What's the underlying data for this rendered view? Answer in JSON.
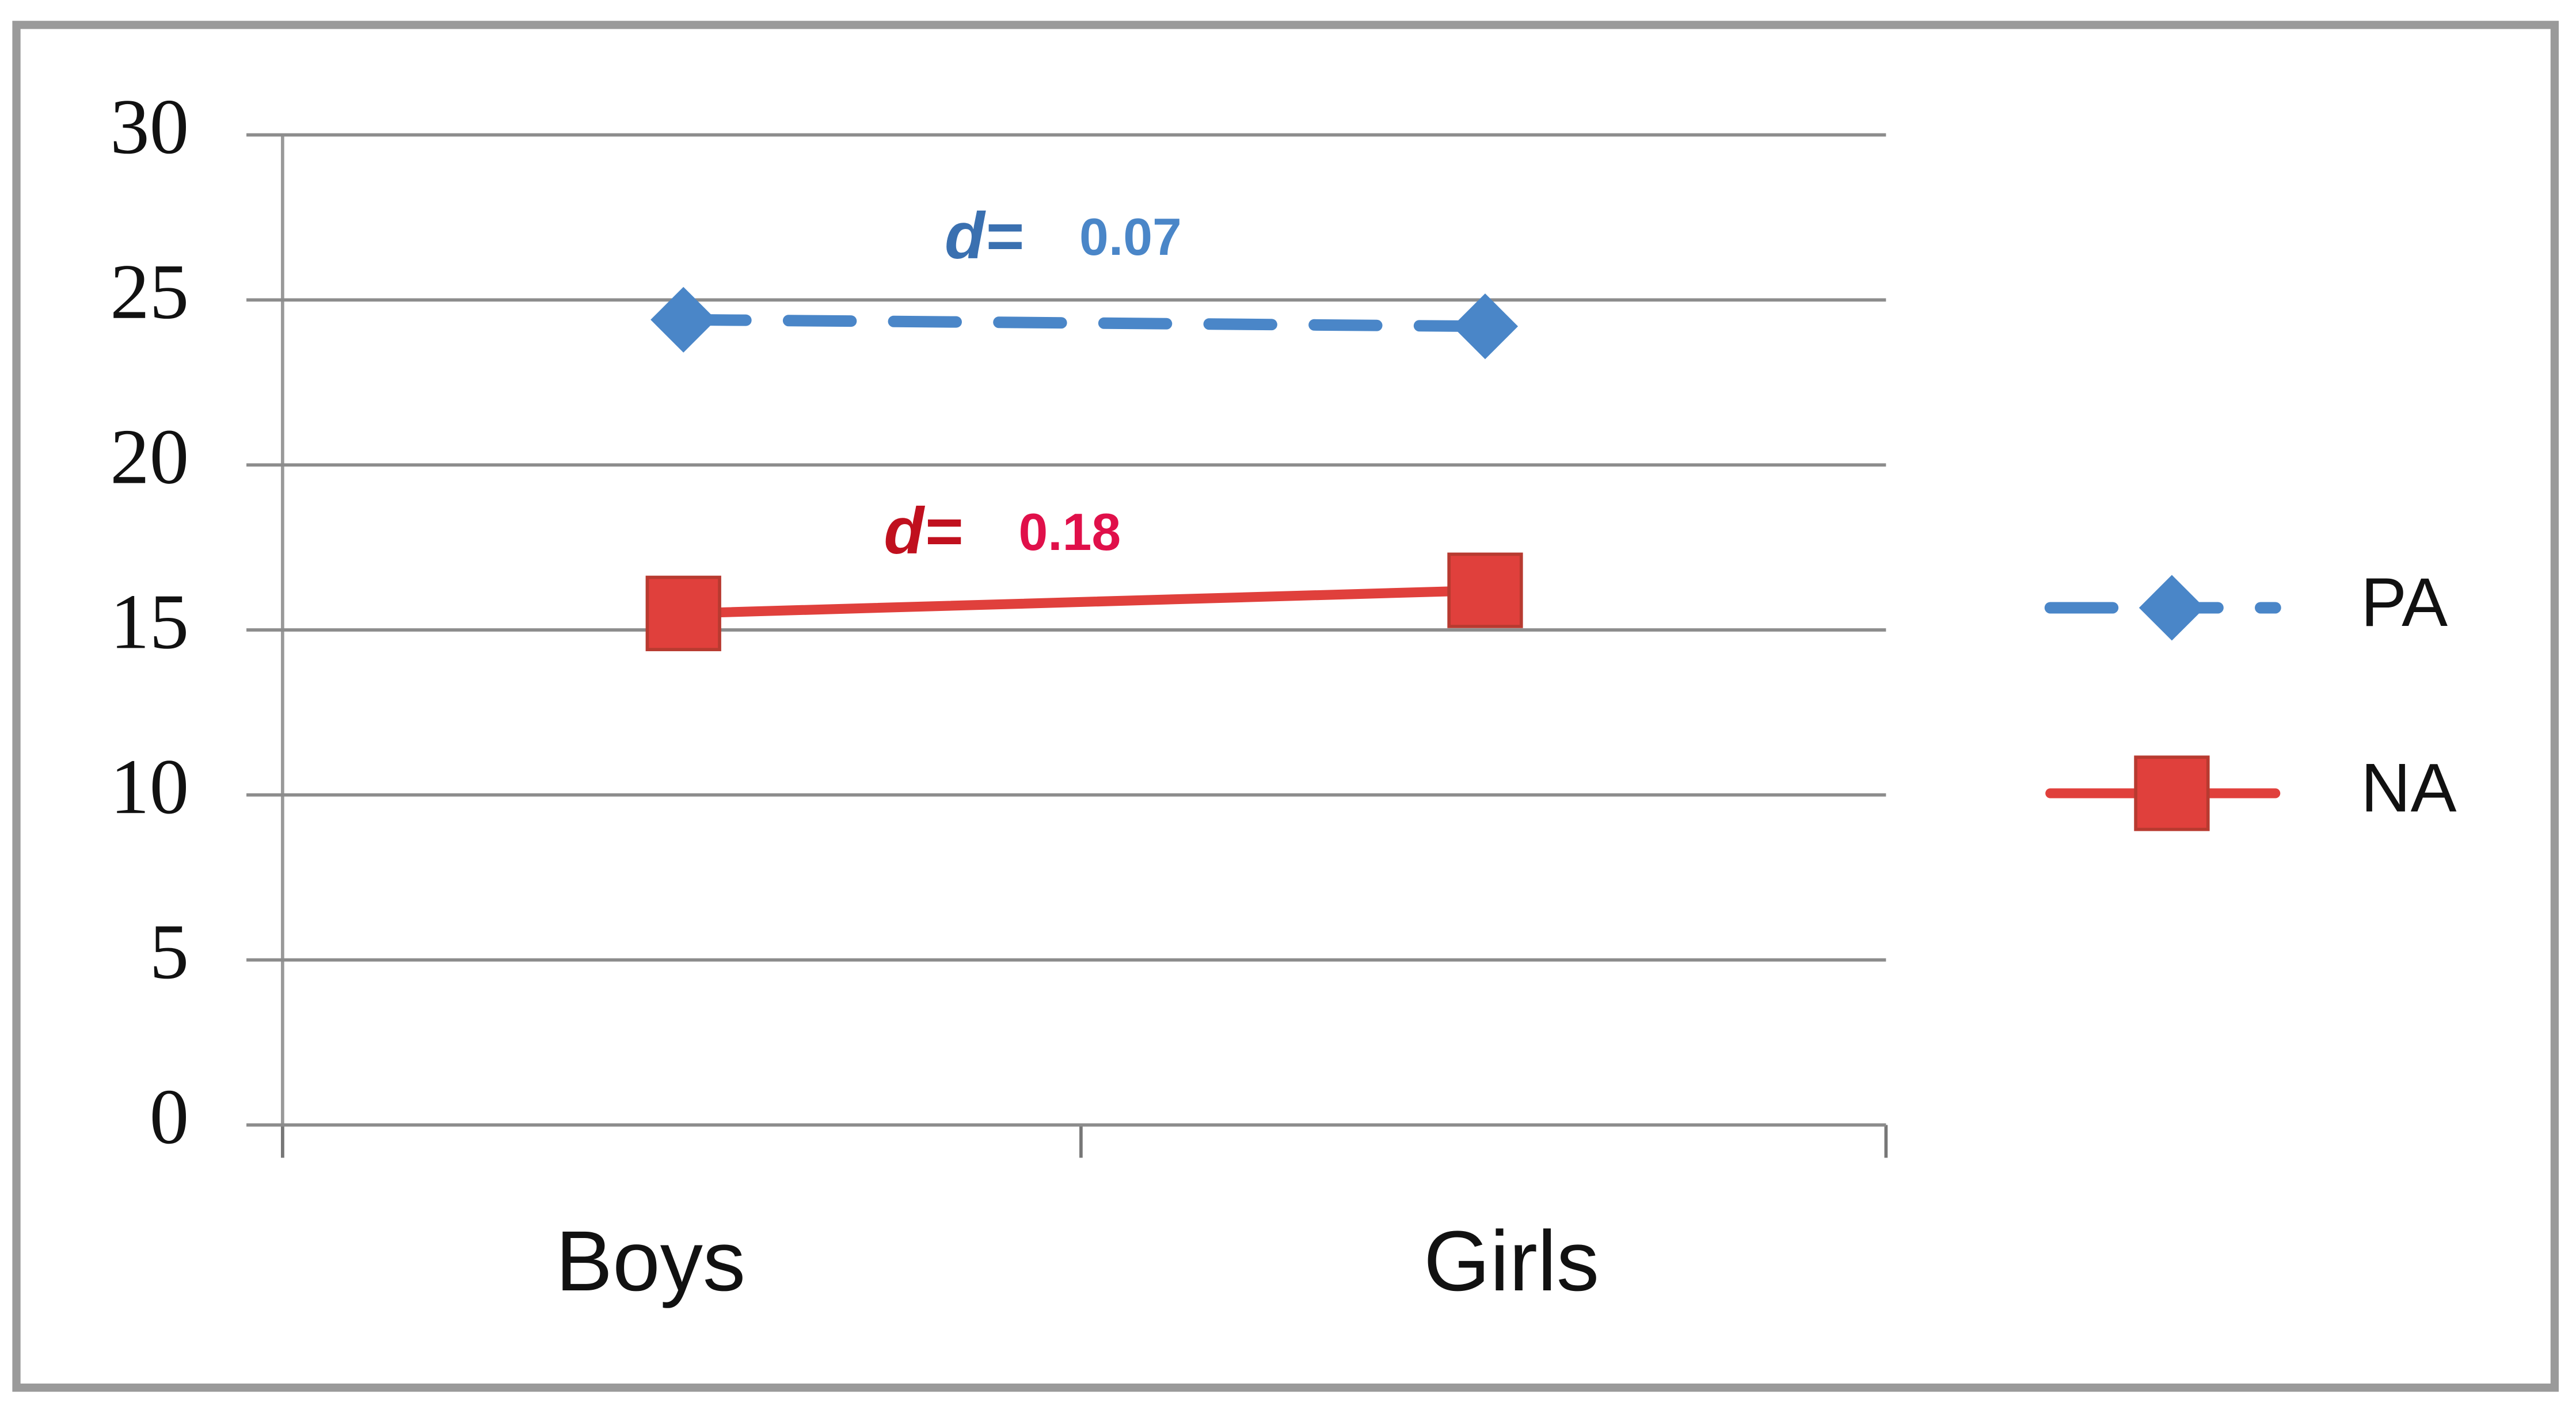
{
  "chart_data": {
    "type": "line",
    "categories": [
      "Boys",
      "Girls"
    ],
    "series": [
      {
        "name": "PA",
        "color": "#4a86c8",
        "dash": true,
        "marker": "diamond",
        "values": [
          24.4,
          24.2
        ]
      },
      {
        "name": "NA",
        "color": "#e0403c",
        "dash": false,
        "marker": "square",
        "values": [
          15.5,
          16.2
        ]
      }
    ],
    "ylim": [
      0,
      30
    ],
    "yticks": [
      0,
      5,
      10,
      15,
      20,
      25,
      30
    ],
    "grid": true,
    "legend": "right",
    "annotations": [
      {
        "prefix": "d=",
        "text": "0.07",
        "color": "#4a86c8",
        "prefix_color": "#3a70b0",
        "series": 0
      },
      {
        "prefix": "d=",
        "text": "0.18",
        "color": "#e0104a",
        "prefix_color": "#c0101e",
        "series": 1
      }
    ]
  }
}
